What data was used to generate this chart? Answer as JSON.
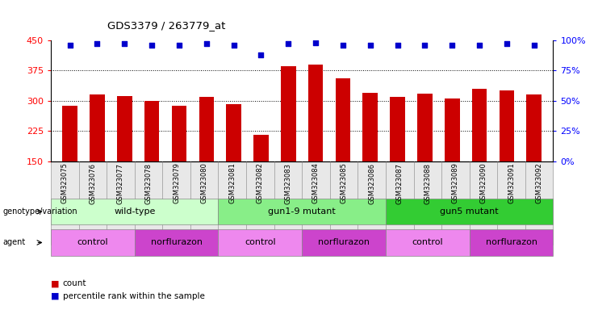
{
  "title": "GDS3379 / 263779_at",
  "samples": [
    "GSM323075",
    "GSM323076",
    "GSM323077",
    "GSM323078",
    "GSM323079",
    "GSM323080",
    "GSM323081",
    "GSM323082",
    "GSM323083",
    "GSM323084",
    "GSM323085",
    "GSM323086",
    "GSM323087",
    "GSM323088",
    "GSM323089",
    "GSM323090",
    "GSM323091",
    "GSM323092"
  ],
  "counts": [
    288,
    315,
    312,
    300,
    287,
    310,
    292,
    215,
    385,
    390,
    355,
    320,
    310,
    318,
    305,
    330,
    325,
    315
  ],
  "percentile_ranks": [
    96,
    97,
    97,
    96,
    96,
    97,
    96,
    88,
    97,
    98,
    96,
    96,
    96,
    96,
    96,
    96,
    97,
    96
  ],
  "ylim_left": [
    150,
    450
  ],
  "ylim_right": [
    0,
    100
  ],
  "yticks_left": [
    150,
    225,
    300,
    375,
    450
  ],
  "yticks_right": [
    0,
    25,
    50,
    75,
    100
  ],
  "bar_color": "#cc0000",
  "dot_color": "#0000cc",
  "bar_width": 0.55,
  "groups": [
    {
      "label": "wild-type",
      "start": 0,
      "end": 5,
      "color": "#ccffcc"
    },
    {
      "label": "gun1-9 mutant",
      "start": 6,
      "end": 11,
      "color": "#88ee88"
    },
    {
      "label": "gun5 mutant",
      "start": 12,
      "end": 17,
      "color": "#33cc33"
    }
  ],
  "agents": [
    {
      "label": "control",
      "start": 0,
      "end": 2,
      "color": "#ee88ee"
    },
    {
      "label": "norflurazon",
      "start": 3,
      "end": 5,
      "color": "#cc44cc"
    },
    {
      "label": "control",
      "start": 6,
      "end": 8,
      "color": "#ee88ee"
    },
    {
      "label": "norflurazon",
      "start": 9,
      "end": 11,
      "color": "#cc44cc"
    },
    {
      "label": "control",
      "start": 12,
      "end": 14,
      "color": "#ee88ee"
    },
    {
      "label": "norflurazon",
      "start": 15,
      "end": 17,
      "color": "#cc44cc"
    }
  ],
  "legend_count_color": "#cc0000",
  "legend_dot_color": "#0000cc",
  "background_color": "#ffffff"
}
